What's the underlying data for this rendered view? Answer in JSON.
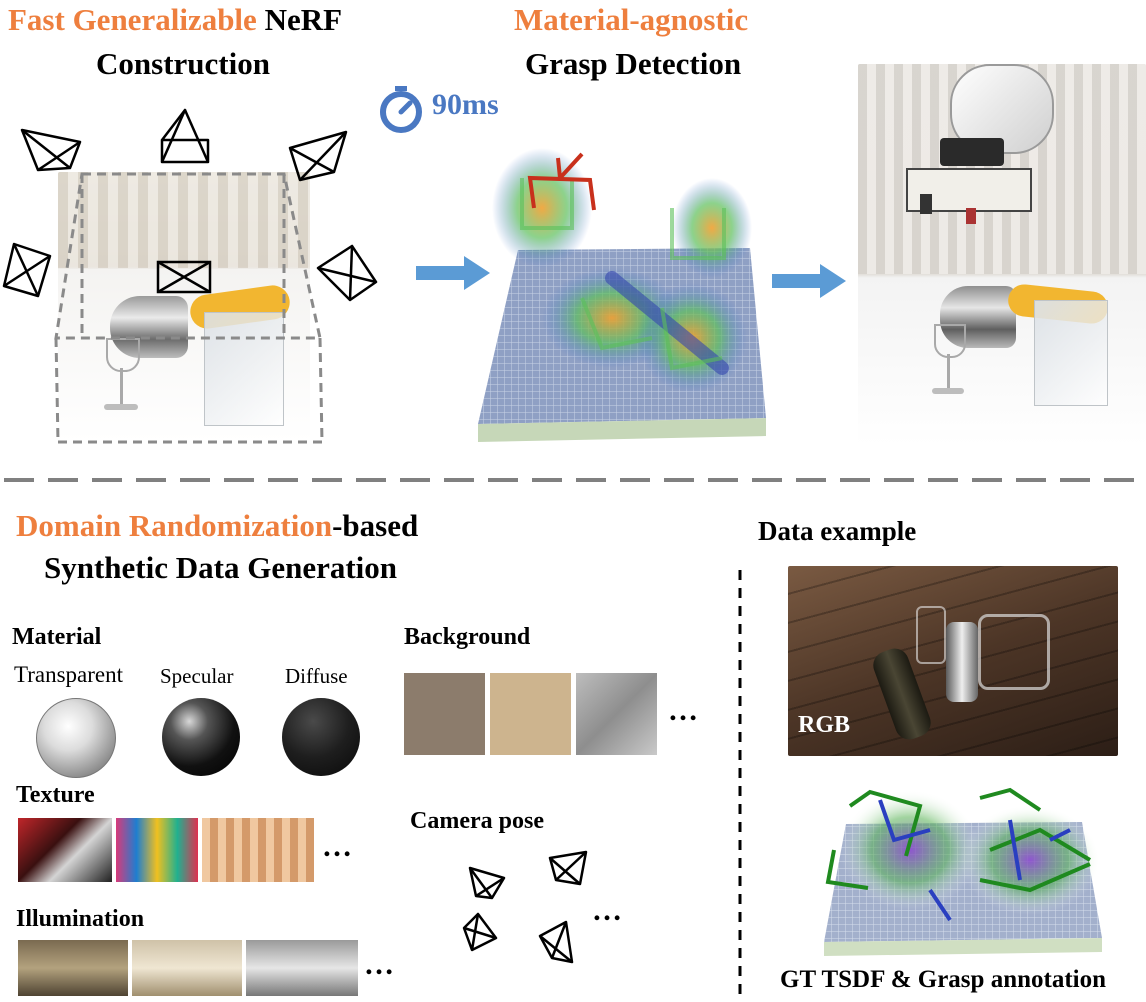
{
  "top": {
    "nerf_title": {
      "highlight": "Fast Generalizable",
      "rest": " NeRF",
      "line2": "Construction"
    },
    "grasp_title": {
      "highlight": "Material-agnostic",
      "line2": "Grasp Detection"
    },
    "timer": {
      "text": "90ms",
      "icon": "stopwatch-icon",
      "color": "#4a78c2"
    },
    "arrow_color": "#5b9bd5"
  },
  "bottom": {
    "dr_title": {
      "highlight": "Domain Randomization",
      "rest": "-based",
      "line2": "Synthetic Data Generation"
    },
    "material": {
      "heading": "Material",
      "items": [
        "Transparent",
        "Specular",
        "Diffuse"
      ]
    },
    "texture": {
      "heading": "Texture"
    },
    "illumination": {
      "heading": "Illumination"
    },
    "background": {
      "heading": "Background"
    },
    "camera_pose": {
      "heading": "Camera pose"
    },
    "ellipsis": "…",
    "data_example": {
      "heading": "Data example",
      "rgb_label": "RGB",
      "caption": "GT TSDF & Grasp annotation"
    }
  },
  "colors": {
    "accent": "#ee7f3e",
    "arrow": "#5b9bd5",
    "divider": "#808080"
  }
}
